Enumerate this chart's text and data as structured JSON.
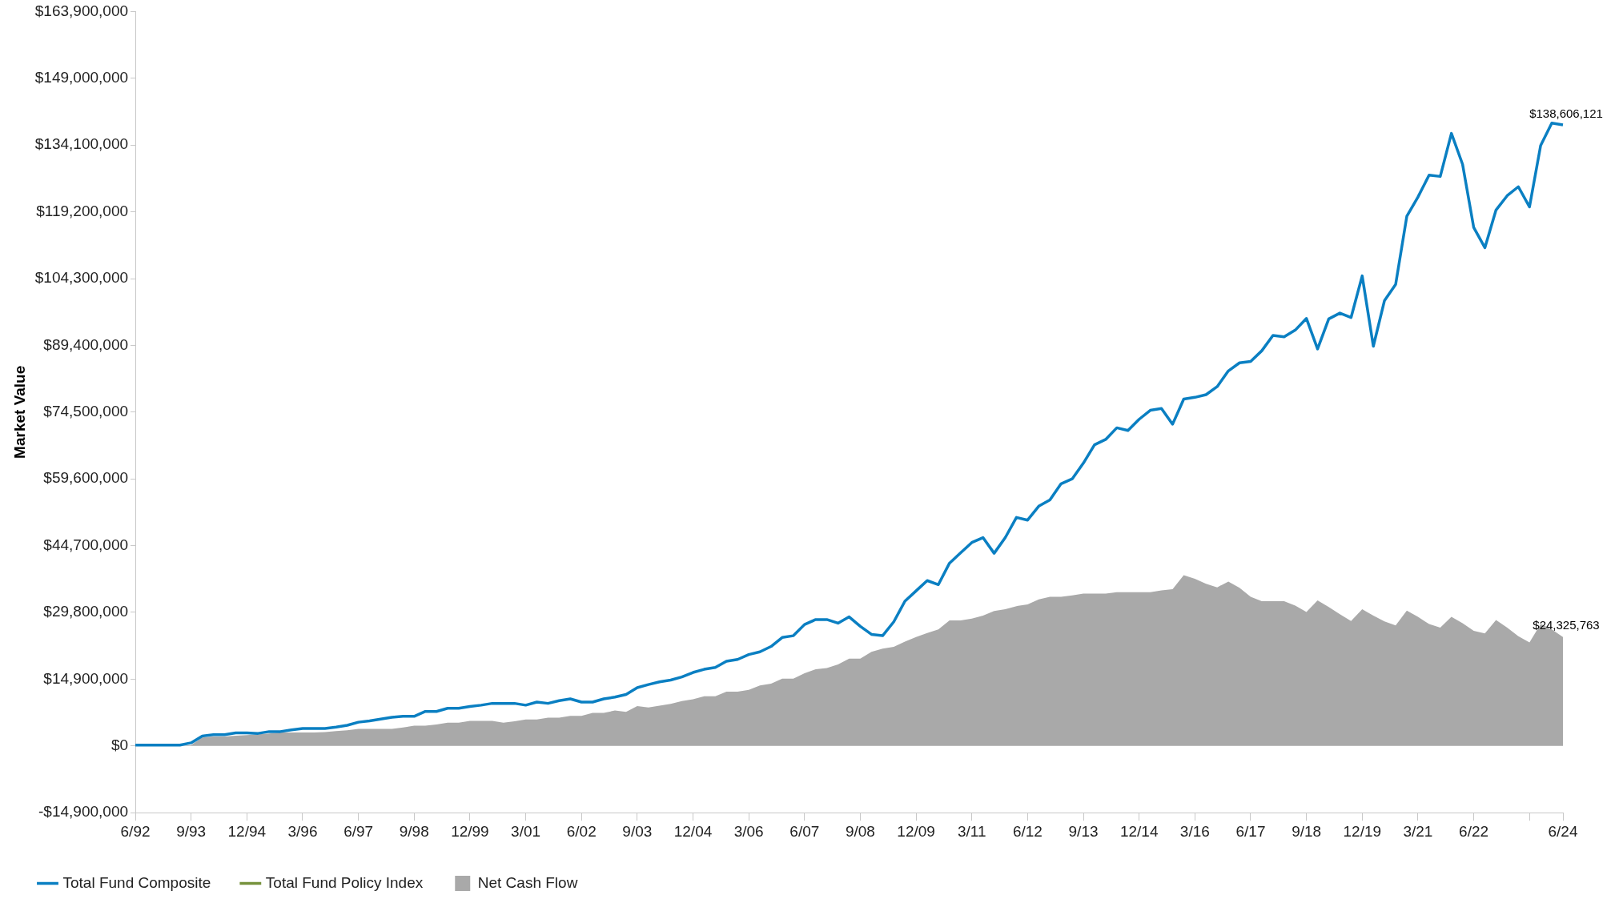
{
  "chart_data": {
    "type": "line",
    "ylabel": "Market Value",
    "categories": [
      "6/92",
      null,
      null,
      null,
      null,
      "9/93",
      null,
      null,
      null,
      null,
      "12/94",
      null,
      null,
      null,
      null,
      "3/96",
      null,
      null,
      null,
      null,
      "6/97",
      null,
      null,
      null,
      null,
      "9/98",
      null,
      null,
      null,
      null,
      "12/99",
      null,
      null,
      null,
      null,
      "3/01",
      null,
      null,
      null,
      null,
      "6/02",
      null,
      null,
      null,
      null,
      "9/03",
      null,
      null,
      null,
      null,
      "12/04",
      null,
      null,
      null,
      null,
      "3/06",
      null,
      null,
      null,
      null,
      "6/07",
      null,
      null,
      null,
      null,
      "9/08",
      null,
      null,
      null,
      null,
      "12/09",
      null,
      null,
      null,
      null,
      "3/11",
      null,
      null,
      null,
      null,
      "6/12",
      null,
      null,
      null,
      null,
      "9/13",
      null,
      null,
      null,
      null,
      "12/14",
      null,
      null,
      null,
      null,
      "3/16",
      null,
      null,
      null,
      null,
      "6/17",
      null,
      null,
      null,
      null,
      "9/18",
      null,
      null,
      null,
      null,
      "12/19",
      null,
      null,
      null,
      null,
      "3/21",
      null,
      null,
      null,
      null,
      "6/22",
      null,
      null,
      null,
      null,
      null,
      null,
      null,
      "6/24"
    ],
    "series": [
      {
        "name": "Total Fund Composite",
        "color": "#0a7fc2",
        "values": [
          200000,
          200000,
          200000,
          200000,
          200000,
          700000,
          2200000,
          2500000,
          2500000,
          2900000,
          2900000,
          2800000,
          3200000,
          3200000,
          3600000,
          3900000,
          3900000,
          3900000,
          4200000,
          4600000,
          5300000,
          5600000,
          6000000,
          6400000,
          6600000,
          6600000,
          7700000,
          7700000,
          8400000,
          8400000,
          8800000,
          9100000,
          9500000,
          9500000,
          9500000,
          9100000,
          9800000,
          9500000,
          10100000,
          10500000,
          9800000,
          9800000,
          10500000,
          10900000,
          11500000,
          13000000,
          13700000,
          14300000,
          14700000,
          15400000,
          16400000,
          17100000,
          17500000,
          18900000,
          19300000,
          20400000,
          21000000,
          22200000,
          24200000,
          24600000,
          27100000,
          28200000,
          28200000,
          27400000,
          28800000,
          26700000,
          24900000,
          24600000,
          27700000,
          32300000,
          34600000,
          36900000,
          36000000,
          40800000,
          43100000,
          45400000,
          46500000,
          43000000,
          46500000,
          51000000,
          50400000,
          53500000,
          54900000,
          58500000,
          59600000,
          63100000,
          67200000,
          68400000,
          71000000,
          70400000,
          72900000,
          74900000,
          75300000,
          71800000,
          77400000,
          77800000,
          78400000,
          80200000,
          83700000,
          85500000,
          85800000,
          88200000,
          91600000,
          91300000,
          92800000,
          95400000,
          88600000,
          95300000,
          96600000,
          95600000,
          104900000,
          89200000,
          99400000,
          103000000,
          118200000,
          122500000,
          127400000,
          127100000,
          136700000,
          129800000,
          115700000,
          111200000,
          119600000,
          122800000,
          124800000,
          120300000,
          134000000,
          139000000,
          138606121
        ]
      },
      {
        "name": "Total Fund Policy Index",
        "color": "#76923c",
        "values": [
          null,
          null,
          null,
          null,
          null,
          null,
          null,
          null,
          null,
          null,
          null,
          null,
          null,
          null,
          null,
          null,
          null,
          null,
          null,
          null,
          null,
          null,
          null,
          null,
          null,
          null,
          null,
          null,
          null,
          null,
          null,
          null,
          null,
          null,
          null,
          null,
          null,
          null,
          null,
          null,
          null,
          null,
          null,
          null,
          null,
          null,
          null,
          null,
          null,
          null,
          null,
          null,
          null,
          null,
          null,
          null,
          null,
          null,
          null,
          null,
          null,
          null,
          null,
          null,
          null,
          null,
          null,
          null,
          null,
          null,
          null,
          null,
          null,
          null,
          null,
          null,
          null,
          null,
          null,
          null,
          null,
          null,
          null,
          null,
          null,
          null,
          null,
          null,
          null,
          null,
          null,
          null,
          null,
          null,
          null,
          null,
          null,
          null,
          null,
          null,
          null,
          null,
          null,
          null,
          null,
          null,
          null,
          null,
          null,
          null,
          null,
          null,
          null,
          null,
          null,
          null,
          null,
          null,
          null,
          null,
          null,
          null,
          null,
          null,
          null,
          null,
          null,
          null,
          null
        ]
      },
      {
        "name": "Net Cash Flow",
        "type": "area",
        "color": "#a9a9a9",
        "values": [
          0,
          0,
          0,
          0,
          0,
          200000,
          1900000,
          2100000,
          2100000,
          2300000,
          2400000,
          2600000,
          2800000,
          3000000,
          3000000,
          3000000,
          3000000,
          3100000,
          3300000,
          3500000,
          3800000,
          3800000,
          3800000,
          3800000,
          4100000,
          4500000,
          4500000,
          4800000,
          5200000,
          5200000,
          5600000,
          5600000,
          5600000,
          5200000,
          5500000,
          5900000,
          5900000,
          6300000,
          6300000,
          6700000,
          6700000,
          7400000,
          7400000,
          7900000,
          7600000,
          8900000,
          8600000,
          9000000,
          9400000,
          10000000,
          10400000,
          11100000,
          11100000,
          12100000,
          12100000,
          12500000,
          13500000,
          13900000,
          15000000,
          15000000,
          16200000,
          17100000,
          17400000,
          18200000,
          19500000,
          19500000,
          21000000,
          21700000,
          22100000,
          23300000,
          24300000,
          25200000,
          26000000,
          28000000,
          28000000,
          28400000,
          29100000,
          30100000,
          30500000,
          31200000,
          31600000,
          32700000,
          33300000,
          33300000,
          33600000,
          34000000,
          34000000,
          34000000,
          34300000,
          34300000,
          34300000,
          34300000,
          34700000,
          35000000,
          38100000,
          37300000,
          36200000,
          35400000,
          36700000,
          35300000,
          33300000,
          32300000,
          32300000,
          32300000,
          31300000,
          29900000,
          32500000,
          31000000,
          29400000,
          27900000,
          30500000,
          29100000,
          27800000,
          26900000,
          30200000,
          28800000,
          27200000,
          26400000,
          28800000,
          27400000,
          25700000,
          25100000,
          28100000,
          26400000,
          24500000,
          23100000,
          27200000,
          26000000,
          24325763
        ]
      }
    ],
    "ylim": [
      -14900000,
      163900000
    ],
    "yticks": [
      {
        "value": -14900000,
        "label": "-$14,900,000"
      },
      {
        "value": 0,
        "label": "$0"
      },
      {
        "value": 14900000,
        "label": "$14,900,000"
      },
      {
        "value": 29800000,
        "label": "$29,800,000"
      },
      {
        "value": 44700000,
        "label": "$44,700,000"
      },
      {
        "value": 59600000,
        "label": "$59,600,000"
      },
      {
        "value": 74500000,
        "label": "$74,500,000"
      },
      {
        "value": 89400000,
        "label": "$89,400,000"
      },
      {
        "value": 104300000,
        "label": "$104,300,000"
      },
      {
        "value": 119200000,
        "label": "$119,200,000"
      },
      {
        "value": 134100000,
        "label": "$134,100,000"
      },
      {
        "value": 149000000,
        "label": "$149,000,000"
      },
      {
        "value": 163900000,
        "label": "$163,900,000"
      }
    ],
    "annotations": [
      {
        "text": "$138,606,121",
        "x": "6/24",
        "y": 138606121
      },
      {
        "text": "$24,325,763",
        "x": "6/24",
        "y": 24325763
      }
    ],
    "grid": false,
    "legend": "bottom left"
  }
}
